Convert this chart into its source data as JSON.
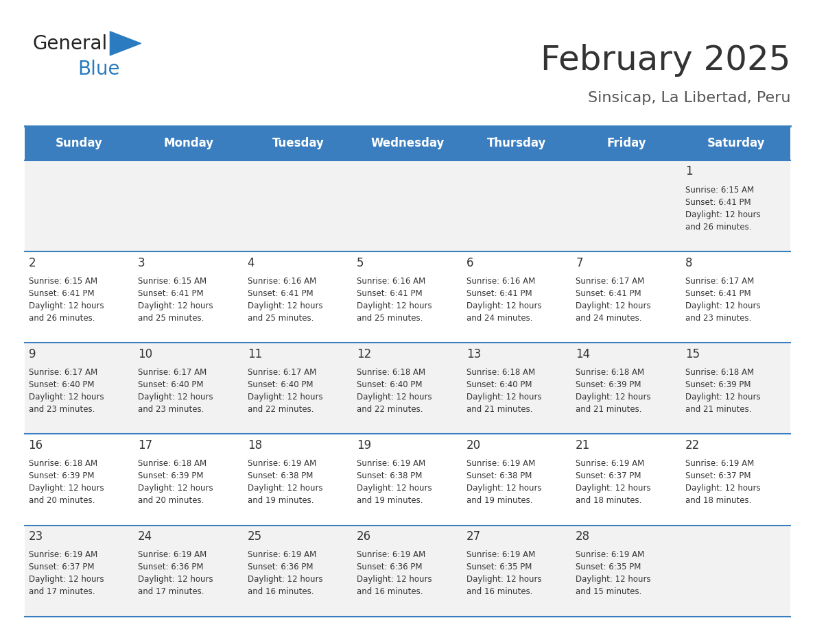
{
  "title": "February 2025",
  "subtitle": "Sinsicap, La Libertad, Peru",
  "days_of_week": [
    "Sunday",
    "Monday",
    "Tuesday",
    "Wednesday",
    "Thursday",
    "Friday",
    "Saturday"
  ],
  "header_bg": "#3a7ebf",
  "header_text_color": "#ffffff",
  "row_bg_odd": "#f2f2f2",
  "row_bg_even": "#ffffff",
  "separator_color": "#3a7ebf",
  "day_num_color": "#333333",
  "cell_text_color": "#333333",
  "title_color": "#333333",
  "subtitle_color": "#555555",
  "logo_general_color": "#222222",
  "logo_blue_color": "#2a7bbf",
  "weeks": [
    [
      {
        "day": null,
        "info": null
      },
      {
        "day": null,
        "info": null
      },
      {
        "day": null,
        "info": null
      },
      {
        "day": null,
        "info": null
      },
      {
        "day": null,
        "info": null
      },
      {
        "day": null,
        "info": null
      },
      {
        "day": 1,
        "info": "Sunrise: 6:15 AM\nSunset: 6:41 PM\nDaylight: 12 hours\nand 26 minutes."
      }
    ],
    [
      {
        "day": 2,
        "info": "Sunrise: 6:15 AM\nSunset: 6:41 PM\nDaylight: 12 hours\nand 26 minutes."
      },
      {
        "day": 3,
        "info": "Sunrise: 6:15 AM\nSunset: 6:41 PM\nDaylight: 12 hours\nand 25 minutes."
      },
      {
        "day": 4,
        "info": "Sunrise: 6:16 AM\nSunset: 6:41 PM\nDaylight: 12 hours\nand 25 minutes."
      },
      {
        "day": 5,
        "info": "Sunrise: 6:16 AM\nSunset: 6:41 PM\nDaylight: 12 hours\nand 25 minutes."
      },
      {
        "day": 6,
        "info": "Sunrise: 6:16 AM\nSunset: 6:41 PM\nDaylight: 12 hours\nand 24 minutes."
      },
      {
        "day": 7,
        "info": "Sunrise: 6:17 AM\nSunset: 6:41 PM\nDaylight: 12 hours\nand 24 minutes."
      },
      {
        "day": 8,
        "info": "Sunrise: 6:17 AM\nSunset: 6:41 PM\nDaylight: 12 hours\nand 23 minutes."
      }
    ],
    [
      {
        "day": 9,
        "info": "Sunrise: 6:17 AM\nSunset: 6:40 PM\nDaylight: 12 hours\nand 23 minutes."
      },
      {
        "day": 10,
        "info": "Sunrise: 6:17 AM\nSunset: 6:40 PM\nDaylight: 12 hours\nand 23 minutes."
      },
      {
        "day": 11,
        "info": "Sunrise: 6:17 AM\nSunset: 6:40 PM\nDaylight: 12 hours\nand 22 minutes."
      },
      {
        "day": 12,
        "info": "Sunrise: 6:18 AM\nSunset: 6:40 PM\nDaylight: 12 hours\nand 22 minutes."
      },
      {
        "day": 13,
        "info": "Sunrise: 6:18 AM\nSunset: 6:40 PM\nDaylight: 12 hours\nand 21 minutes."
      },
      {
        "day": 14,
        "info": "Sunrise: 6:18 AM\nSunset: 6:39 PM\nDaylight: 12 hours\nand 21 minutes."
      },
      {
        "day": 15,
        "info": "Sunrise: 6:18 AM\nSunset: 6:39 PM\nDaylight: 12 hours\nand 21 minutes."
      }
    ],
    [
      {
        "day": 16,
        "info": "Sunrise: 6:18 AM\nSunset: 6:39 PM\nDaylight: 12 hours\nand 20 minutes."
      },
      {
        "day": 17,
        "info": "Sunrise: 6:18 AM\nSunset: 6:39 PM\nDaylight: 12 hours\nand 20 minutes."
      },
      {
        "day": 18,
        "info": "Sunrise: 6:19 AM\nSunset: 6:38 PM\nDaylight: 12 hours\nand 19 minutes."
      },
      {
        "day": 19,
        "info": "Sunrise: 6:19 AM\nSunset: 6:38 PM\nDaylight: 12 hours\nand 19 minutes."
      },
      {
        "day": 20,
        "info": "Sunrise: 6:19 AM\nSunset: 6:38 PM\nDaylight: 12 hours\nand 19 minutes."
      },
      {
        "day": 21,
        "info": "Sunrise: 6:19 AM\nSunset: 6:37 PM\nDaylight: 12 hours\nand 18 minutes."
      },
      {
        "day": 22,
        "info": "Sunrise: 6:19 AM\nSunset: 6:37 PM\nDaylight: 12 hours\nand 18 minutes."
      }
    ],
    [
      {
        "day": 23,
        "info": "Sunrise: 6:19 AM\nSunset: 6:37 PM\nDaylight: 12 hours\nand 17 minutes."
      },
      {
        "day": 24,
        "info": "Sunrise: 6:19 AM\nSunset: 6:36 PM\nDaylight: 12 hours\nand 17 minutes."
      },
      {
        "day": 25,
        "info": "Sunrise: 6:19 AM\nSunset: 6:36 PM\nDaylight: 12 hours\nand 16 minutes."
      },
      {
        "day": 26,
        "info": "Sunrise: 6:19 AM\nSunset: 6:36 PM\nDaylight: 12 hours\nand 16 minutes."
      },
      {
        "day": 27,
        "info": "Sunrise: 6:19 AM\nSunset: 6:35 PM\nDaylight: 12 hours\nand 16 minutes."
      },
      {
        "day": 28,
        "info": "Sunrise: 6:19 AM\nSunset: 6:35 PM\nDaylight: 12 hours\nand 15 minutes."
      },
      {
        "day": null,
        "info": null
      }
    ]
  ]
}
